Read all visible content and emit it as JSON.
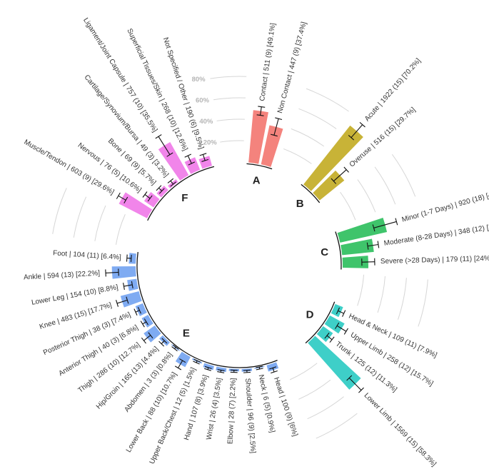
{
  "chart_data": {
    "type": "radial_bar",
    "ylim": [
      0,
      100
    ],
    "yticks": [
      {
        "value": 20,
        "label": "20%"
      },
      {
        "value": 40,
        "label": "40%"
      },
      {
        "value": 60,
        "label": "60%"
      },
      {
        "value": 80,
        "label": "80%"
      }
    ],
    "grid": true,
    "series": [
      {
        "name": "A",
        "color": "#f4837d",
        "categories": [
          "Contact | 511 (9) [49.1%]",
          "Non Contact | 447 (9) [37.4%]"
        ],
        "values": [
          49.1,
          37.4
        ],
        "errors": [
          4,
          8
        ]
      },
      {
        "name": "B",
        "color": "#c8b337",
        "categories": [
          "Acute | 1922 (15) [70.2%]",
          "Overuse | 516 (15) [29.7%]"
        ],
        "values": [
          70.2,
          29.7
        ],
        "errors": [
          8,
          8
        ]
      },
      {
        "name": "C",
        "color": "#3fc46b",
        "categories": [
          "Minor (1-7 Days) | 920 (18) [44.9%]",
          "Moderate (8-28 Days) | 348 (12) [29.8%]",
          "Severe (>28 Days) | 179 (11) [24%]"
        ],
        "values": [
          44.9,
          29.8,
          24
        ],
        "errors": [
          11,
          5,
          6
        ]
      },
      {
        "name": "D",
        "color": "#3ecfc8",
        "categories": [
          "Head & Neck | 109 (11) [7.9%]",
          "Upper Limb | 258 (12) [15.7%]",
          "Trunk | 125 (12) [11.3%]",
          "Lower Limb | 1569 (15) [58.3%]"
        ],
        "values": [
          7.9,
          15.7,
          11.3,
          58.3
        ],
        "errors": [
          3,
          5,
          3,
          8
        ]
      },
      {
        "name": "E",
        "color": "#7fabf2",
        "categories": [
          "Head | 100 (9) [6%]",
          "Neck | 6 (5) [0.9%]",
          "Shoulder | 96 (9) [2.5%]",
          "Elbow | 28 (7) [2.2%]",
          "Wrist | 26 (4) [3.5%]",
          "Hand | 107 (8) [3.9%]",
          "Upper Back/Chest | 12 (5) [1.5%]",
          "Lower Back | 88 (10) [10.7%]",
          "Abdomen | 3 (3) [0.8%]",
          "Hip/Groin | 165 (13) [4.4%]",
          "Thigh | 286 (10) [12.7%]",
          "Anterior Thigh | 40 (3) [6.8%]",
          "Posterior Thigh | 38 (3) [7.4%]",
          "Knee | 483 (15) [17.7%]",
          "Lower Leg | 154 (10) [8.8%]",
          "Ankle | 594 (13) [22.2%]",
          "Foot | 104 (11) [6.4%]"
        ],
        "values": [
          6,
          0.9,
          2.5,
          2.2,
          3.5,
          3.9,
          1.5,
          10.7,
          0.8,
          4.4,
          12.7,
          6.8,
          7.4,
          17.7,
          8.8,
          22.2,
          6.4
        ],
        "errors": [
          2,
          1,
          1,
          1,
          1,
          1,
          1,
          4,
          1,
          2,
          4,
          2,
          2,
          5,
          4,
          6,
          2
        ]
      },
      {
        "name": "F",
        "color": "#f185ea",
        "categories": [
          "Muscle/Tendon | 603 (9) [29.6%]",
          "Nervous | 76 (5) [10.6%]",
          "Bone | 69 (9) [5.7%]",
          "Cartilage/Synovium/Bursa | 49 (3) [3.2%]",
          "Ligament/Joint Capsule | 757 (10) [35.5%]",
          "Superficial Tissues/Skin | 268 (10) [12.6%]",
          "Not Specified / Other | 190 (6) [9.5%]"
        ],
        "values": [
          29.6,
          10.6,
          5.7,
          3.2,
          35.5,
          12.6,
          9.5
        ],
        "errors": [
          4,
          3,
          2,
          2,
          10,
          4,
          3
        ]
      }
    ]
  }
}
